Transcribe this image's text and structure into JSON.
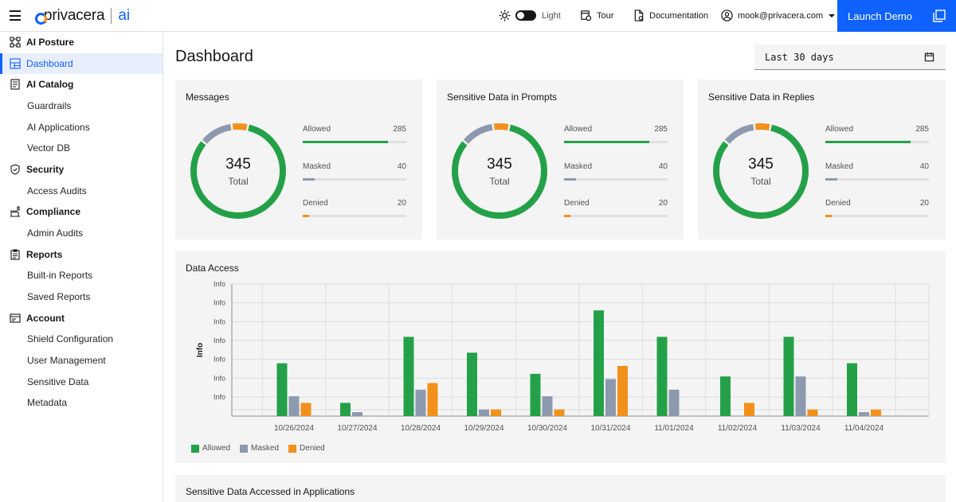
{
  "header": {
    "logo_text": "privacera",
    "logo_ai": "ai",
    "theme_label": "Light",
    "tour_label": "Tour",
    "docs_label": "Documentation",
    "user_email": "mook@privacera.com",
    "launch_label": "Launch Demo"
  },
  "sidebar": {
    "items": [
      {
        "label": "AI Posture",
        "kind": "section",
        "icon": "posture-icon"
      },
      {
        "label": "Dashboard",
        "kind": "active",
        "icon": "dashboard-icon"
      },
      {
        "label": "AI Catalog",
        "kind": "section",
        "icon": "catalog-icon"
      },
      {
        "label": "Guardrails",
        "kind": "sub"
      },
      {
        "label": "AI Applications",
        "kind": "sub"
      },
      {
        "label": "Vector DB",
        "kind": "sub"
      },
      {
        "label": "Security",
        "kind": "section",
        "icon": "shield-icon"
      },
      {
        "label": "Access Audits",
        "kind": "sub"
      },
      {
        "label": "Compliance",
        "kind": "section",
        "icon": "compliance-icon"
      },
      {
        "label": "Admin Audits",
        "kind": "sub"
      },
      {
        "label": "Reports",
        "kind": "section",
        "icon": "reports-icon"
      },
      {
        "label": "Built-in Reports",
        "kind": "sub"
      },
      {
        "label": "Saved Reports",
        "kind": "sub"
      },
      {
        "label": "Account",
        "kind": "section",
        "icon": "account-icon"
      },
      {
        "label": "Shield Configuration",
        "kind": "sub"
      },
      {
        "label": "User Management",
        "kind": "sub"
      },
      {
        "label": "Sensitive Data",
        "kind": "sub"
      },
      {
        "label": "Metadata",
        "kind": "sub"
      }
    ]
  },
  "main": {
    "title": "Dashboard",
    "date_range": "Last 30 days"
  },
  "colors": {
    "allowed": "#24a148",
    "masked": "#8d99ae",
    "denied": "#f1911c",
    "accent": "#0f62fe"
  },
  "cards": [
    {
      "title": "Messages",
      "total": "345",
      "total_label": "Total",
      "stats": [
        {
          "name": "Allowed",
          "value": 285
        },
        {
          "name": "Masked",
          "value": 40
        },
        {
          "name": "Denied",
          "value": 20
        }
      ]
    },
    {
      "title": "Sensitive Data in Prompts",
      "total": "345",
      "total_label": "Total",
      "stats": [
        {
          "name": "Allowed",
          "value": 285
        },
        {
          "name": "Masked",
          "value": 40
        },
        {
          "name": "Denied",
          "value": 20
        }
      ]
    },
    {
      "title": "Sensitive Data in Replies",
      "total": "345",
      "total_label": "Total",
      "stats": [
        {
          "name": "Allowed",
          "value": 285
        },
        {
          "name": "Masked",
          "value": 40
        },
        {
          "name": "Denied",
          "value": 20
        }
      ]
    }
  ],
  "chart_data": {
    "type": "bar",
    "title": "Data Access",
    "xlabel": "",
    "ylabel": "Info",
    "y_tick_labels": [
      "Info",
      "Info",
      "Info",
      "Info",
      "Info",
      "Info",
      "Info"
    ],
    "ylim": [
      0,
      10
    ],
    "grid": true,
    "legend_position": "bottom-left",
    "categories": [
      "10/26/2024",
      "10/27/2024",
      "10/28/2024",
      "10/29/2024",
      "10/30/2024",
      "10/31/2024",
      "11/01/2024",
      "11/02/2024",
      "11/03/2024",
      "11/04/2024"
    ],
    "series": [
      {
        "name": "Allowed",
        "values": [
          4,
          1,
          6,
          4.8,
          3.2,
          8,
          6,
          3,
          6,
          4
        ]
      },
      {
        "name": "Masked",
        "values": [
          1.5,
          0.3,
          2,
          0.5,
          1.5,
          2.8,
          2,
          0,
          3,
          0.3
        ]
      },
      {
        "name": "Denied",
        "values": [
          1,
          0,
          2.5,
          0.5,
          0.5,
          3.8,
          0,
          1,
          0.5,
          0.5
        ]
      }
    ]
  },
  "bottom_card": {
    "title": "Sensitive Data Accessed in Applications"
  }
}
